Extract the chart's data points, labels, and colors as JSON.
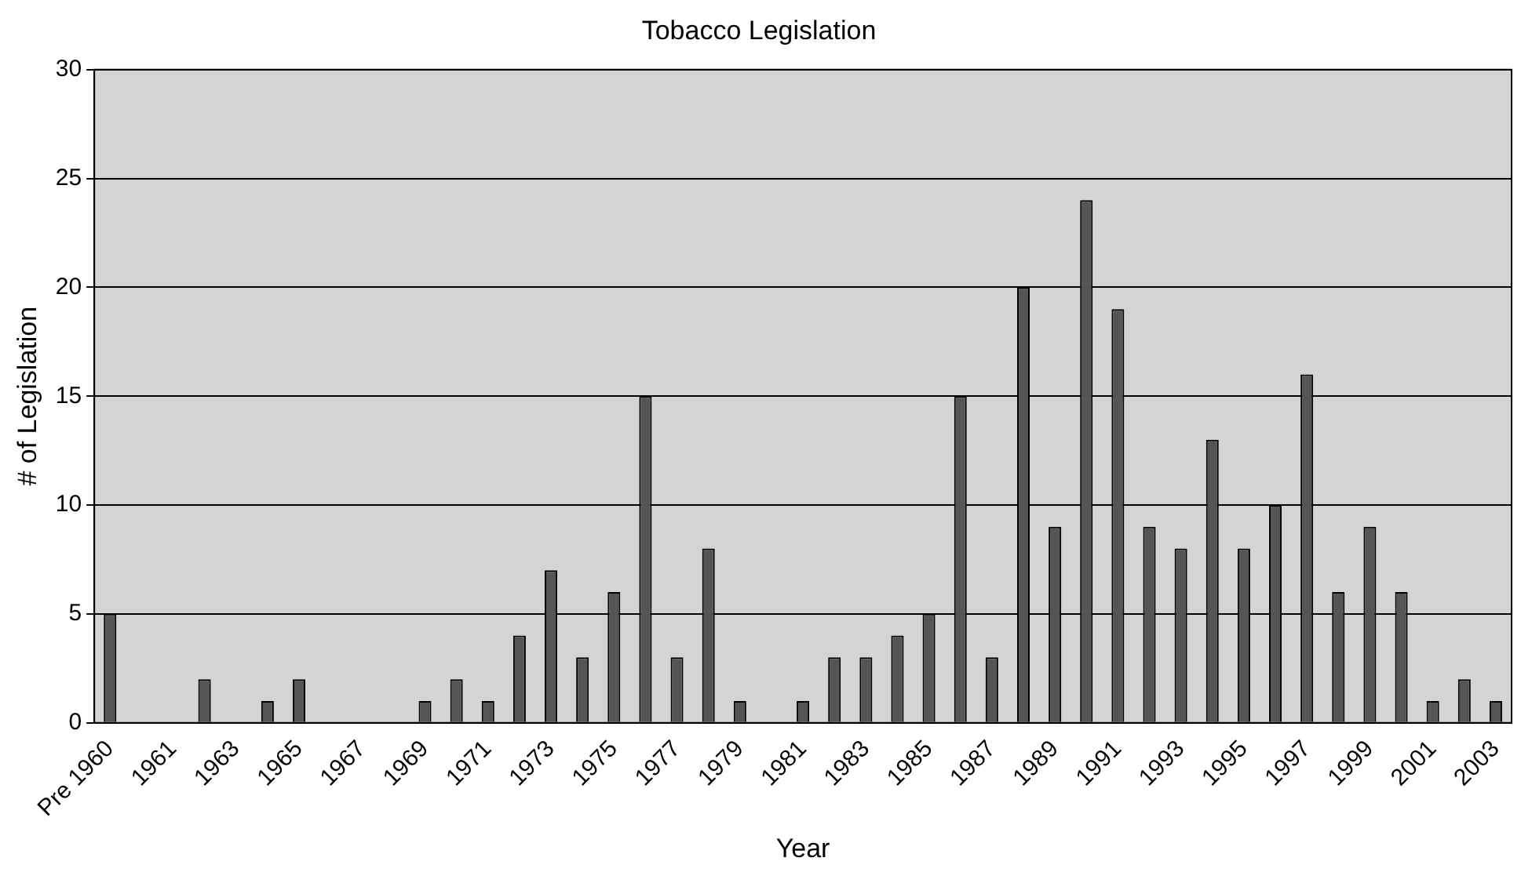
{
  "chart_data": {
    "type": "bar",
    "title": "Tobacco Legislation",
    "xlabel": "Year",
    "ylabel": "# of Legislation",
    "categories": [
      "Pre 1960",
      null,
      "1961",
      null,
      "1963",
      null,
      "1965",
      null,
      "1967",
      null,
      "1969",
      null,
      "1971",
      null,
      "1973",
      null,
      "1975",
      null,
      "1977",
      null,
      "1979",
      null,
      "1981",
      null,
      "1983",
      null,
      "1985",
      null,
      "1987",
      null,
      "1989",
      null,
      "1991",
      null,
      "1993",
      null,
      "1995",
      null,
      "1997",
      null,
      "1999",
      null,
      "2001",
      null,
      "2003"
    ],
    "values": [
      5,
      0,
      0,
      2,
      0,
      1,
      2,
      0,
      0,
      0,
      1,
      2,
      1,
      4,
      7,
      3,
      6,
      15,
      3,
      8,
      1,
      0,
      1,
      3,
      3,
      4,
      5,
      15,
      3,
      20,
      9,
      24,
      19,
      9,
      8,
      13,
      8,
      10,
      16,
      6,
      9,
      6,
      1,
      2,
      1
    ],
    "color": "#555555",
    "ylim": [
      0,
      30
    ],
    "yticks": [
      0,
      5,
      10,
      15,
      20,
      25,
      30
    ],
    "grid": "y",
    "legend": false
  }
}
